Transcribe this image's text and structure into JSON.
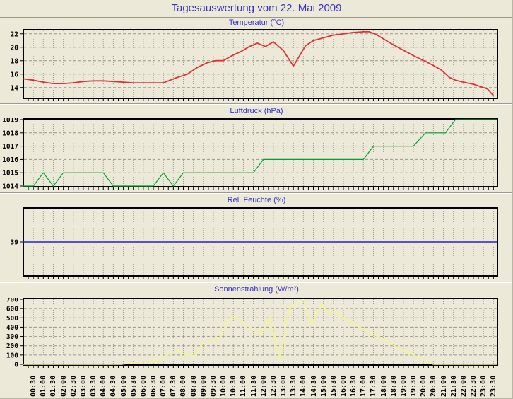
{
  "window": {
    "title": "Tagesauswertung vom 22. Mai 2009"
  },
  "theme": {
    "background": "#ece9d8",
    "title_color": "#3333cc",
    "grid_color": "#9a988c",
    "frame_color": "#000000",
    "tick_label_color": "#000000"
  },
  "time_axis": {
    "xlim": [
      0,
      23.7
    ],
    "tick_start_hour": 0.5,
    "tick_step_hour": 0.5,
    "tick_labels": [
      "00:30",
      "01:00",
      "01:30",
      "02:00",
      "02:30",
      "03:00",
      "03:30",
      "04:00",
      "04:30",
      "05:00",
      "05:30",
      "06:00",
      "06:30",
      "07:00",
      "07:30",
      "08:00",
      "08:30",
      "09:00",
      "09:30",
      "10:00",
      "10:30",
      "11:00",
      "11:30",
      "12:00",
      "12:30",
      "13:00",
      "13:30",
      "14:00",
      "14:30",
      "15:00",
      "15:30",
      "16:00",
      "16:30",
      "17:00",
      "17:30",
      "18:00",
      "18:30",
      "19:00",
      "19:30",
      "20:00",
      "20:30",
      "21:00",
      "21:30",
      "22:00",
      "22:30",
      "23:00",
      "23:30"
    ]
  },
  "chart_data": [
    {
      "type": "line",
      "title": "Temperatur (°C)",
      "color": "#e03232",
      "ylim": [
        12.5,
        22.5
      ],
      "yticks": [
        14,
        16,
        18,
        20,
        22
      ],
      "x": [
        0,
        0.5,
        1.0,
        1.5,
        2.0,
        2.5,
        3.0,
        3.5,
        4.0,
        4.5,
        5.0,
        5.5,
        6.0,
        6.5,
        7.0,
        7.6,
        8.2,
        8.7,
        9.2,
        9.6,
        10.0,
        10.4,
        10.9,
        11.3,
        11.7,
        12.1,
        12.5,
        13.0,
        13.5,
        14.1,
        14.5,
        15.0,
        15.5,
        16.0,
        16.5,
        17.0,
        17.3,
        17.7,
        18.3,
        18.9,
        19.6,
        20.3,
        20.9,
        21.3,
        21.6,
        22.0,
        22.5,
        23.0,
        23.2,
        23.5
      ],
      "y": [
        15.3,
        15.1,
        14.8,
        14.6,
        14.6,
        14.7,
        14.9,
        15.0,
        15.0,
        14.9,
        14.8,
        14.7,
        14.7,
        14.7,
        14.7,
        15.4,
        16.0,
        17.0,
        17.7,
        18.0,
        18.0,
        18.7,
        19.4,
        20.1,
        20.6,
        20.1,
        20.8,
        19.5,
        17.2,
        20.2,
        21.0,
        21.4,
        21.8,
        22.0,
        22.2,
        22.3,
        22.3,
        21.8,
        20.7,
        19.7,
        18.6,
        17.6,
        16.6,
        15.5,
        15.1,
        14.8,
        14.5,
        14.0,
        13.8,
        12.8
      ]
    },
    {
      "type": "line",
      "title": "Luftdruck (hPa)",
      "color": "#00a030",
      "ylim": [
        1014,
        1019
      ],
      "yticks": [
        1014,
        1015,
        1016,
        1017,
        1018,
        1019
      ],
      "x": [
        0,
        0.5,
        1.0,
        1.5,
        2.0,
        4.0,
        4.5,
        6.5,
        7.0,
        7.5,
        8.0,
        11.5,
        12.0,
        17.0,
        17.5,
        19.5,
        20.1,
        21.1,
        21.6,
        23.7
      ],
      "y": [
        1014,
        1014,
        1015,
        1014,
        1015,
        1015,
        1014,
        1014,
        1015,
        1014,
        1015,
        1015,
        1016,
        1016,
        1017,
        1017,
        1018,
        1018,
        1019,
        1019
      ]
    },
    {
      "type": "line",
      "title": "Rel. Feuchte (%)",
      "color": "#2222cc",
      "ylim": [
        31,
        47
      ],
      "yticks": [
        39
      ],
      "x": [
        0,
        23.7
      ],
      "y": [
        39,
        39
      ]
    },
    {
      "type": "line",
      "title": "Sonnenstrahlung (W/m²)",
      "color": "#f7f780",
      "ylim": [
        0,
        700
      ],
      "yticks": [
        0,
        100,
        200,
        300,
        400,
        500,
        600,
        700
      ],
      "x": [
        0,
        4.9,
        5.5,
        6.0,
        6.5,
        7.0,
        7.5,
        7.8,
        8.1,
        8.6,
        9.0,
        9.3,
        9.8,
        10.2,
        10.6,
        10.9,
        11.3,
        11.9,
        12.3,
        12.8,
        13.3,
        13.6,
        14.0,
        14.4,
        14.9,
        15.3,
        15.6,
        16.1,
        16.6,
        17.1,
        17.6,
        18.1,
        18.6,
        19.1,
        19.6,
        20.1,
        20.5,
        23.7
      ],
      "y": [
        0,
        0,
        15,
        25,
        35,
        80,
        130,
        145,
        100,
        95,
        240,
        245,
        280,
        460,
        520,
        470,
        400,
        330,
        500,
        60,
        600,
        660,
        695,
        430,
        650,
        545,
        575,
        480,
        430,
        370,
        310,
        255,
        195,
        140,
        90,
        35,
        0,
        0
      ]
    }
  ]
}
